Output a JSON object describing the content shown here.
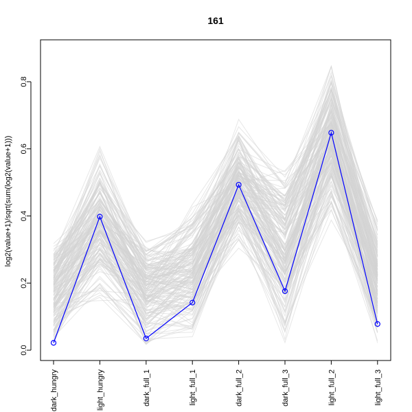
{
  "chart_data": {
    "type": "line",
    "title": "161",
    "xlabel": "",
    "ylabel": "log2(value+1)/sqrt(sum(log2(value+1)))",
    "categories": [
      "dark_hungry",
      "light_hungry",
      "dark_full_1",
      "light_full_1",
      "dark_full_2",
      "dark_full_3",
      "light_full_2",
      "light_full_3"
    ],
    "ylim": [
      0.0,
      0.9
    ],
    "yticks": [
      0.0,
      0.2,
      0.4,
      0.6,
      0.8
    ],
    "grid": false,
    "legend": "none",
    "series": [
      {
        "values": [
          0.022,
          0.398,
          0.035,
          0.142,
          0.493,
          0.176,
          0.648,
          0.078
        ],
        "color": "#0000ff",
        "marker": "open-circle",
        "highlight": true
      }
    ],
    "background_lines": {
      "color": "#d3d3d3",
      "count": 180,
      "ranges": [
        [
          0.0,
          0.34
        ],
        [
          0.13,
          0.62
        ],
        [
          0.0,
          0.34
        ],
        [
          0.0,
          0.46
        ],
        [
          0.28,
          0.7
        ],
        [
          0.0,
          0.58
        ],
        [
          0.37,
          0.89
        ],
        [
          0.0,
          0.41
        ]
      ]
    }
  }
}
